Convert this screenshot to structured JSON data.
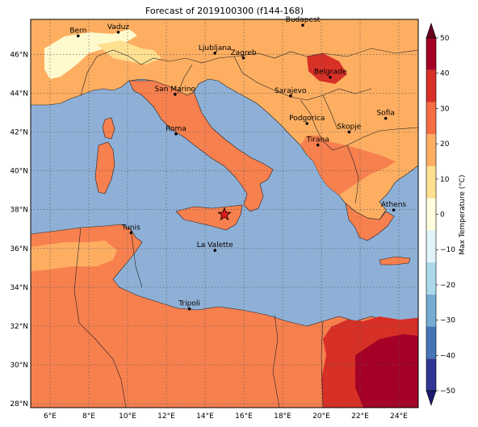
{
  "title": "Forecast of 2019100300 (f144-168)",
  "map": {
    "lat_labels": [
      "46°N",
      "44°N",
      "42°N",
      "40°N",
      "38°N",
      "36°N",
      "34°N",
      "32°N",
      "30°N",
      "28°N"
    ],
    "lon_labels": [
      "6°E",
      "8°E",
      "10°E",
      "12°E",
      "14°E",
      "16°E",
      "18°E",
      "20°E",
      "22°E",
      "24°E"
    ],
    "extent": {
      "lon_min": 5.0,
      "lon_max": 25.0,
      "lat_min": 27.8,
      "lat_max": 47.8
    },
    "cities": [
      {
        "name": "Bern",
        "lon": 7.45,
        "lat": 46.95
      },
      {
        "name": "Vaduz",
        "lon": 9.52,
        "lat": 47.14
      },
      {
        "name": "Budapest",
        "lon": 19.04,
        "lat": 47.5
      },
      {
        "name": "Ljubljana",
        "lon": 14.51,
        "lat": 46.06
      },
      {
        "name": "Zagreb",
        "lon": 15.98,
        "lat": 45.81
      },
      {
        "name": "Belgrade",
        "lon": 20.46,
        "lat": 44.82
      },
      {
        "name": "San Marino",
        "lon": 12.45,
        "lat": 43.94
      },
      {
        "name": "Sarajevo",
        "lon": 18.41,
        "lat": 43.86
      },
      {
        "name": "Sofia",
        "lon": 23.32,
        "lat": 42.7
      },
      {
        "name": "Podgorica",
        "lon": 19.26,
        "lat": 42.44
      },
      {
        "name": "Roma",
        "lon": 12.5,
        "lat": 41.9
      },
      {
        "name": "Skopje",
        "lon": 21.43,
        "lat": 42.0
      },
      {
        "name": "Tirana",
        "lon": 19.82,
        "lat": 41.33
      },
      {
        "name": "Athens",
        "lon": 23.73,
        "lat": 37.98
      },
      {
        "name": "Tunis",
        "lon": 10.18,
        "lat": 36.81
      },
      {
        "name": "La Valette",
        "lon": 14.51,
        "lat": 35.9
      },
      {
        "name": "Tripoli",
        "lon": 13.19,
        "lat": 32.89
      }
    ],
    "marker": {
      "lon": 15.0,
      "lat": 37.75,
      "symbol": "star",
      "color": "#e41a1c"
    }
  },
  "colorbar": {
    "label": "Max Temperature (°C)",
    "ticks": [
      "50",
      "40",
      "30",
      "20",
      "10",
      "0",
      "−10",
      "−20",
      "−30",
      "−40",
      "−50"
    ],
    "colors": [
      "#67001f",
      "#b2182b",
      "#d6604d",
      "#f4a582",
      "#fddbc7",
      "#f7f7f7",
      "#d1e5f0",
      "#92c5de",
      "#4393c3",
      "#2166ac",
      "#053061"
    ],
    "bins": [
      "#313695",
      "#4575b4",
      "#74add1",
      "#abd9e9",
      "#e0f3f8",
      "#fffedf",
      "#fee090",
      "#fdae61",
      "#f46d43",
      "#d73027",
      "#a50026"
    ]
  },
  "colors": {
    "sea": "#8fb0d6",
    "land_warm": "#f7804f",
    "land_hot": "#d73027",
    "land_mild": "#fdae61",
    "land_cool": "#fee090",
    "land_cold": "#fffacd"
  }
}
